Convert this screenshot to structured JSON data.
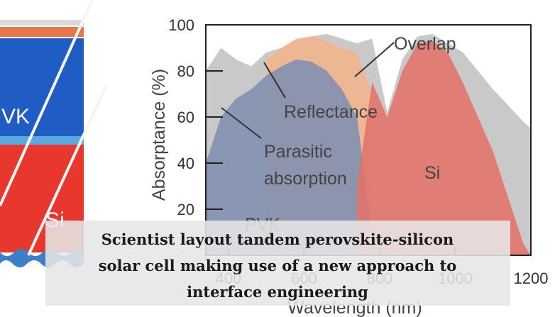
{
  "chart_data": {
    "type": "area",
    "y_label": "Absorptance (%)",
    "x_label": "Wavelength (nm)",
    "xlim": [
      340,
      1200
    ],
    "ylim": [
      0,
      100
    ],
    "xticks": [
      400,
      600,
      800,
      1000,
      1200
    ],
    "yticks": [
      20,
      40,
      60,
      80,
      100
    ],
    "x": [
      340,
      380,
      420,
      460,
      500,
      540,
      580,
      620,
      660,
      700,
      740,
      780,
      820,
      860,
      900,
      940,
      980,
      1020,
      1060,
      1100,
      1140,
      1180,
      1200
    ],
    "series": [
      {
        "color": "#c9c9c9",
        "values": [
          80,
          90,
          85,
          82,
          88,
          90,
          93,
          95,
          96,
          94,
          92,
          94,
          62,
          85,
          95,
          96,
          92,
          88,
          80,
          72,
          65,
          58,
          55
        ]
      },
      {
        "color": "#f2b48c",
        "values": [
          null,
          null,
          null,
          null,
          85,
          90,
          94,
          95,
          93,
          90,
          88,
          70,
          null,
          null,
          null,
          null,
          null,
          null,
          null,
          null,
          null,
          null,
          null
        ]
      },
      {
        "color": "#7f8fb0",
        "values": [
          40,
          60,
          68,
          72,
          78,
          82,
          85,
          84,
          80,
          72,
          60,
          10,
          0,
          null,
          null,
          null,
          null,
          null,
          null,
          null,
          null,
          null,
          null
        ]
      },
      {
        "color": "#e2736a",
        "values": [
          null,
          null,
          null,
          null,
          null,
          null,
          null,
          null,
          null,
          null,
          30,
          75,
          60,
          80,
          92,
          93,
          88,
          75,
          60,
          45,
          25,
          5,
          0
        ]
      }
    ],
    "annotations": [
      "Overlap",
      "Reflectance",
      "Parasitic",
      "absorption",
      "Si",
      "PVK"
    ]
  },
  "device": {
    "labels": [
      "VK",
      "Si"
    ]
  },
  "caption": [
    "Scientist layout tandem perovskite-silicon",
    "solar cell making use of a new approach to",
    "interface engineering"
  ]
}
